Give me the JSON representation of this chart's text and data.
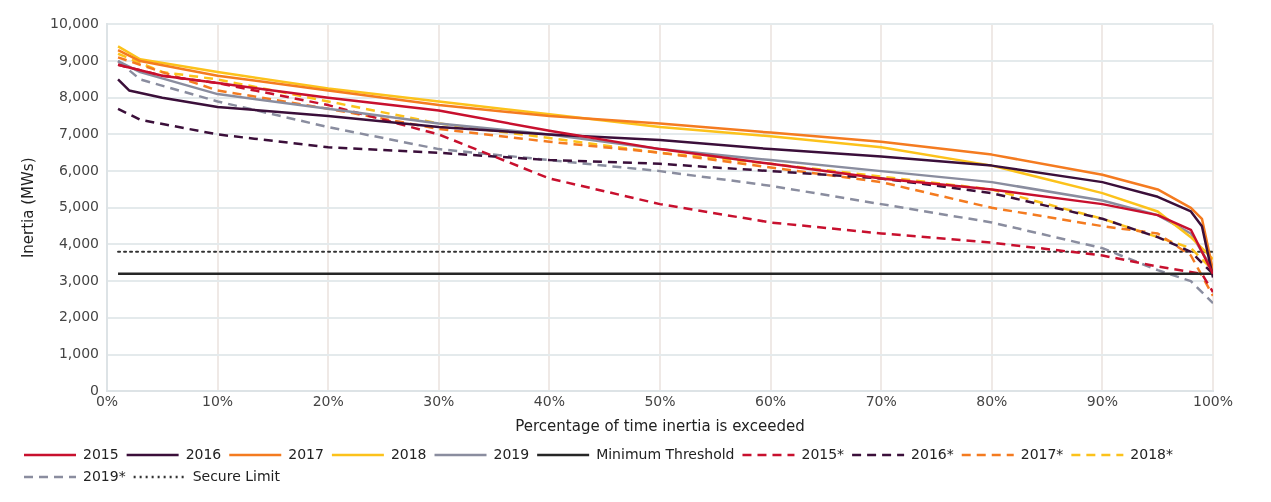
{
  "chart_data": {
    "type": "line",
    "xlabel": "Percentage of time inertia is exceeded",
    "ylabel": "Inertia (MWs)",
    "xlim": [
      0,
      100
    ],
    "ylim": [
      0,
      10000
    ],
    "xticks": [
      {
        "value": 0,
        "label": "0%"
      },
      {
        "value": 10,
        "label": "10%"
      },
      {
        "value": 20,
        "label": "20%"
      },
      {
        "value": 30,
        "label": "30%"
      },
      {
        "value": 40,
        "label": "40%"
      },
      {
        "value": 50,
        "label": "50%"
      },
      {
        "value": 60,
        "label": "60%"
      },
      {
        "value": 70,
        "label": "70%"
      },
      {
        "value": 80,
        "label": "80%"
      },
      {
        "value": 90,
        "label": "90%"
      },
      {
        "value": 100,
        "label": "100%"
      }
    ],
    "yticks": [
      0,
      {
        "value": 1000,
        "label": "1,000"
      },
      {
        "value": 2000,
        "label": "2,000"
      },
      {
        "value": 3000,
        "label": "3,000"
      },
      {
        "value": 4000,
        "label": "4,000"
      },
      {
        "value": 5000,
        "label": "5,000"
      },
      {
        "value": 6000,
        "label": "6,000"
      },
      {
        "value": 7000,
        "label": "7,000"
      },
      {
        "value": 8000,
        "label": "8,000"
      },
      {
        "value": 9000,
        "label": "9,000"
      },
      {
        "value": 10000,
        "label": "10,000"
      }
    ],
    "grid": true,
    "legend": "bottom",
    "marker": "none",
    "series": [
      {
        "name": "2015",
        "color": "#c8102e",
        "line_style": "solid",
        "x": [
          1,
          5,
          10,
          20,
          30,
          40,
          50,
          60,
          70,
          80,
          90,
          95,
          98,
          100
        ],
        "values": [
          8900,
          8600,
          8400,
          8000,
          7650,
          7100,
          6600,
          6200,
          5800,
          5500,
          5100,
          4800,
          4400,
          3200
        ]
      },
      {
        "name": "2016",
        "color": "#3b0f3a",
        "line_style": "solid",
        "x": [
          1,
          2,
          5,
          10,
          20,
          30,
          40,
          50,
          60,
          70,
          80,
          90,
          95,
          98,
          99,
          100
        ],
        "values": [
          8500,
          8200,
          8000,
          7750,
          7500,
          7200,
          7000,
          6850,
          6600,
          6400,
          6150,
          5700,
          5300,
          4900,
          4500,
          3100
        ]
      },
      {
        "name": "2017",
        "color": "#f47b20",
        "line_style": "solid",
        "x": [
          1,
          3,
          10,
          20,
          30,
          40,
          50,
          60,
          70,
          80,
          90,
          95,
          98,
          99,
          100
        ],
        "values": [
          9300,
          9000,
          8600,
          8200,
          7800,
          7500,
          7300,
          7050,
          6800,
          6450,
          5900,
          5500,
          5000,
          4700,
          3300
        ]
      },
      {
        "name": "2018",
        "color": "#fcc21b",
        "line_style": "solid",
        "x": [
          1,
          3,
          10,
          20,
          30,
          40,
          50,
          60,
          70,
          80,
          90,
          95,
          98,
          100
        ],
        "values": [
          9400,
          9050,
          8700,
          8250,
          7900,
          7550,
          7200,
          6950,
          6650,
          6150,
          5400,
          4900,
          4200,
          3600
        ]
      },
      {
        "name": "2019",
        "color": "#8a8d9f",
        "line_style": "solid",
        "x": [
          1,
          3,
          10,
          20,
          30,
          40,
          50,
          60,
          70,
          80,
          90,
          95,
          98,
          100
        ],
        "values": [
          9000,
          8700,
          8100,
          7700,
          7300,
          7000,
          6600,
          6300,
          6000,
          5700,
          5200,
          4800,
          4300,
          3300
        ]
      },
      {
        "name": "Minimum Threshold",
        "color": "#262626",
        "line_style": "solid",
        "x": [
          1,
          100
        ],
        "values": [
          3200,
          3200
        ]
      },
      {
        "name": "2015*",
        "color": "#c8102e",
        "line_style": "dashed",
        "x": [
          1,
          5,
          10,
          20,
          30,
          35,
          40,
          50,
          60,
          70,
          80,
          90,
          95,
          99,
          100
        ],
        "values": [
          8900,
          8600,
          8400,
          7800,
          7000,
          6400,
          5800,
          5100,
          4600,
          4300,
          4050,
          3700,
          3400,
          3200,
          2700
        ]
      },
      {
        "name": "2016*",
        "color": "#3b0f3a",
        "line_style": "dashed",
        "x": [
          1,
          3,
          10,
          20,
          30,
          40,
          50,
          60,
          70,
          80,
          90,
          95,
          98,
          100
        ],
        "values": [
          7700,
          7400,
          7000,
          6650,
          6500,
          6300,
          6200,
          6000,
          5800,
          5400,
          4700,
          4200,
          3800,
          3200
        ]
      },
      {
        "name": "2017*",
        "color": "#f47b20",
        "line_style": "dashed",
        "x": [
          1,
          5,
          10,
          20,
          30,
          40,
          50,
          60,
          70,
          80,
          90,
          95,
          98,
          100
        ],
        "values": [
          9100,
          8700,
          8200,
          7700,
          7150,
          6800,
          6500,
          6100,
          5700,
          5000,
          4500,
          4300,
          3700,
          2600
        ]
      },
      {
        "name": "2018*",
        "color": "#fcc21b",
        "line_style": "dashed",
        "x": [
          1,
          5,
          10,
          20,
          30,
          40,
          50,
          60,
          70,
          80,
          90,
          95,
          98,
          100
        ],
        "values": [
          9200,
          8700,
          8500,
          7900,
          7300,
          6900,
          6500,
          6200,
          5850,
          5500,
          4700,
          4200,
          3900,
          3300
        ]
      },
      {
        "name": "2019*",
        "color": "#8a8d9f",
        "line_style": "dashed",
        "x": [
          1,
          3,
          10,
          20,
          30,
          40,
          50,
          60,
          70,
          80,
          90,
          95,
          98,
          100
        ],
        "values": [
          9000,
          8500,
          7900,
          7200,
          6600,
          6300,
          6000,
          5600,
          5100,
          4600,
          3900,
          3300,
          3000,
          2400
        ]
      },
      {
        "name": "Secure Limit",
        "color": "#333333",
        "line_style": "dotted",
        "x": [
          1,
          100
        ],
        "values": [
          3800,
          3800
        ]
      }
    ]
  }
}
